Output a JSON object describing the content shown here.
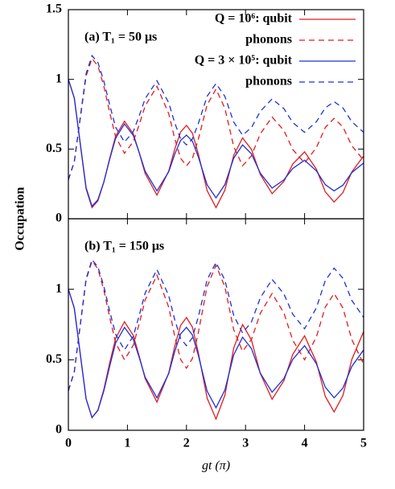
{
  "chart_data": [
    {
      "type": "line",
      "annotation": "(a) T₁ = 50 μs",
      "ylabel": "Occupation",
      "x": [
        0,
        0.1,
        0.2,
        0.3,
        0.4,
        0.5,
        0.6,
        0.7,
        0.8,
        0.95,
        1.1,
        1.2,
        1.3,
        1.5,
        1.7,
        1.8,
        1.9,
        2.0,
        2.1,
        2.2,
        2.35,
        2.5,
        2.65,
        2.8,
        2.95,
        3.1,
        3.25,
        3.45,
        3.65,
        3.8,
        4.0,
        4.2,
        4.35,
        4.5,
        4.65,
        4.8,
        5.0
      ],
      "xlim": [
        0,
        5
      ],
      "ylim": [
        0,
        1.5
      ],
      "yticks": [
        0,
        0.5,
        1,
        1.5
      ],
      "legend": "upper right",
      "series": [
        {
          "name": "Q = 10⁶: qubit",
          "color": "#e31a1c",
          "style": "solid",
          "values": [
            1,
            0.866,
            0.54,
            0.214,
            0.08,
            0.129,
            0.262,
            0.434,
            0.593,
            0.7,
            0.609,
            0.473,
            0.325,
            0.17,
            0.343,
            0.498,
            0.622,
            0.67,
            0.614,
            0.466,
            0.202,
            0.08,
            0.205,
            0.455,
            0.58,
            0.498,
            0.318,
            0.18,
            0.268,
            0.392,
            0.48,
            0.356,
            0.194,
            0.12,
            0.188,
            0.336,
            0.45
          ]
        },
        {
          "name": "phonons",
          "color": "#e31a1c",
          "style": "dashed",
          "values": [
            0.28,
            0.407,
            0.715,
            1.023,
            1.15,
            1.096,
            0.951,
            0.762,
            0.588,
            0.47,
            0.553,
            0.676,
            0.809,
            0.95,
            0.753,
            0.577,
            0.434,
            0.38,
            0.432,
            0.57,
            0.817,
            0.93,
            0.793,
            0.518,
            0.38,
            0.452,
            0.609,
            0.73,
            0.633,
            0.497,
            0.4,
            0.51,
            0.654,
            0.72,
            0.658,
            0.524,
            0.42
          ]
        },
        {
          "name": "Q = 3 × 10⁵: qubit",
          "color": "#1c31d9",
          "style": "solid",
          "values": [
            1,
            0.867,
            0.545,
            0.223,
            0.09,
            0.137,
            0.263,
            0.427,
            0.578,
            0.68,
            0.597,
            0.474,
            0.341,
            0.2,
            0.338,
            0.462,
            0.562,
            0.6,
            0.557,
            0.445,
            0.243,
            0.15,
            0.245,
            0.435,
            0.53,
            0.466,
            0.327,
            0.22,
            0.279,
            0.361,
            0.42,
            0.344,
            0.245,
            0.2,
            0.241,
            0.331,
            0.4
          ]
        },
        {
          "name": "phonons",
          "color": "#1c31d9",
          "style": "dashed",
          "values": [
            0.28,
            0.41,
            0.725,
            1.04,
            1.17,
            1.121,
            0.988,
            0.816,
            0.657,
            0.55,
            0.626,
            0.739,
            0.861,
            0.99,
            0.831,
            0.689,
            0.574,
            0.53,
            0.572,
            0.682,
            0.879,
            0.97,
            0.878,
            0.693,
            0.6,
            0.654,
            0.77,
            0.86,
            0.79,
            0.69,
            0.62,
            0.696,
            0.795,
            0.84,
            0.795,
            0.696,
            0.62
          ]
        }
      ]
    },
    {
      "type": "line",
      "annotation": "(b) T₁ = 150 μs",
      "xlabel": "gt (π)",
      "x": [
        0,
        0.1,
        0.2,
        0.3,
        0.4,
        0.5,
        0.6,
        0.7,
        0.8,
        0.95,
        1.1,
        1.2,
        1.3,
        1.5,
        1.7,
        1.8,
        1.9,
        2.0,
        2.1,
        2.2,
        2.35,
        2.5,
        2.65,
        2.8,
        2.95,
        3.1,
        3.25,
        3.45,
        3.65,
        3.8,
        4.0,
        4.2,
        4.35,
        4.5,
        4.65,
        4.8,
        5.0
      ],
      "xlim": [
        0,
        5
      ],
      "xticks": [
        0,
        1,
        2,
        3,
        4,
        5
      ],
      "ylim": [
        0,
        1.5
      ],
      "yticks": [
        0,
        0.5,
        1
      ],
      "series": [
        {
          "color": "#e31a1c",
          "style": "solid",
          "values": [
            1,
            0.867,
            0.545,
            0.223,
            0.09,
            0.144,
            0.289,
            0.478,
            0.652,
            0.77,
            0.672,
            0.525,
            0.367,
            0.2,
            0.407,
            0.593,
            0.743,
            0.8,
            0.732,
            0.552,
            0.228,
            0.08,
            0.248,
            0.583,
            0.75,
            0.641,
            0.403,
            0.22,
            0.352,
            0.538,
            0.67,
            0.484,
            0.241,
            0.13,
            0.247,
            0.503,
            0.7
          ]
        },
        {
          "color": "#e31a1c",
          "style": "dashed",
          "values": [
            0.28,
            0.414,
            0.74,
            1.066,
            1.2,
            1.145,
            0.995,
            0.8,
            0.621,
            0.5,
            0.603,
            0.757,
            0.924,
            1.1,
            0.872,
            0.668,
            0.503,
            0.44,
            0.509,
            0.692,
            1.02,
            1.17,
            1.018,
            0.713,
            0.56,
            0.644,
            0.829,
            0.97,
            0.832,
            0.638,
            0.5,
            0.662,
            0.873,
            0.97,
            0.867,
            0.643,
            0.47
          ]
        },
        {
          "color": "#1c31d9",
          "style": "solid",
          "values": [
            1,
            0.867,
            0.545,
            0.223,
            0.09,
            0.141,
            0.278,
            0.455,
            0.619,
            0.73,
            0.644,
            0.516,
            0.377,
            0.23,
            0.403,
            0.558,
            0.683,
            0.73,
            0.676,
            0.533,
            0.277,
            0.16,
            0.285,
            0.535,
            0.66,
            0.58,
            0.405,
            0.27,
            0.367,
            0.503,
            0.6,
            0.472,
            0.306,
            0.23,
            0.3,
            0.453,
            0.57
          ]
        },
        {
          "color": "#1c31d9",
          "style": "dashed",
          "values": [
            0.28,
            0.416,
            0.745,
            1.074,
            1.21,
            1.159,
            1.022,
            0.844,
            0.681,
            0.57,
            0.668,
            0.815,
            0.973,
            1.14,
            0.954,
            0.786,
            0.651,
            0.6,
            0.656,
            0.804,
            1.068,
            1.19,
            1.065,
            0.815,
            0.69,
            0.768,
            0.939,
            1.07,
            0.967,
            0.823,
            0.72,
            0.868,
            1.061,
            1.15,
            1.078,
            0.921,
            0.8
          ]
        }
      ]
    }
  ]
}
